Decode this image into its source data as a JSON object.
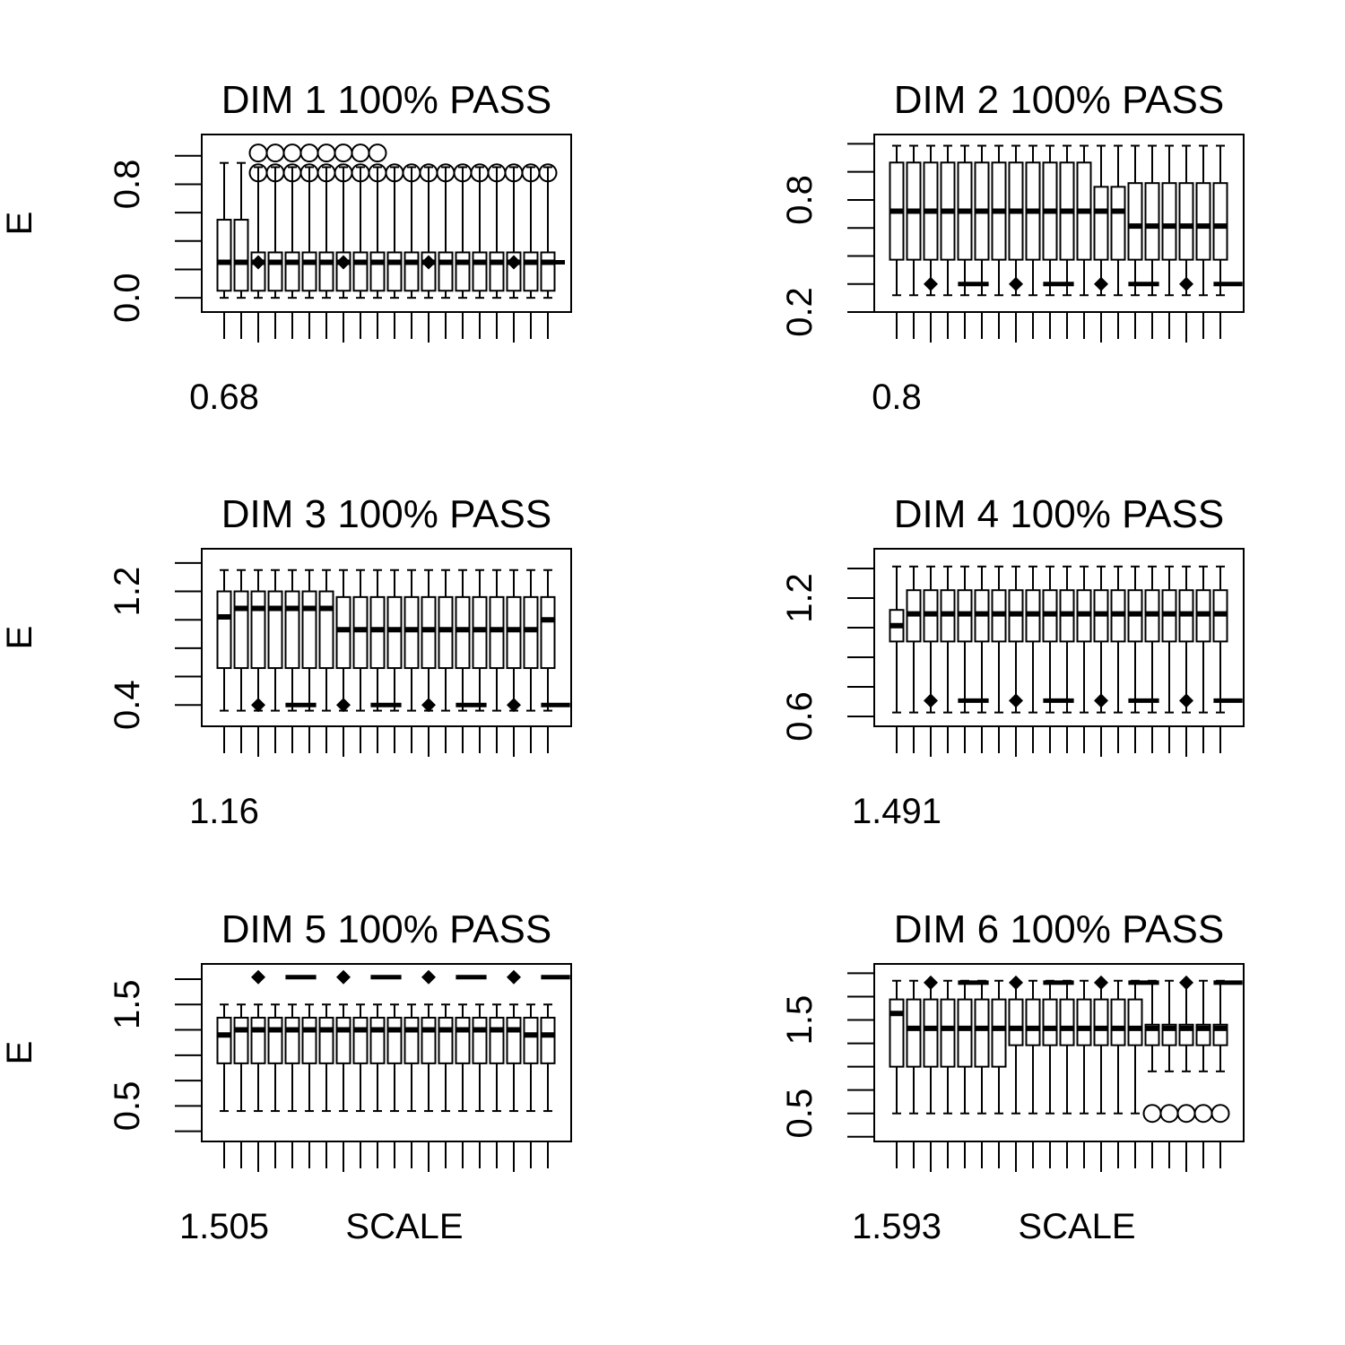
{
  "chart_data": [
    {
      "type": "box",
      "title": "DIM 1 100% PASS",
      "ylabel": "E",
      "xlabel": "",
      "x_tick_label": "0.68",
      "y_ticks": [
        "0.0",
        "0.8"
      ],
      "ylim": [
        -0.1,
        1.15
      ],
      "whisker_top": [
        0.95,
        0.95,
        0.92,
        0.92,
        0.92,
        0.92,
        0.92,
        0.92,
        0.92,
        0.92,
        0.92,
        0.92,
        0.92,
        0.92,
        0.92,
        0.92,
        0.92,
        0.92,
        0.92,
        0.92
      ],
      "q3": [
        0.55,
        0.55,
        0.32,
        0.32,
        0.32,
        0.32,
        0.32,
        0.32,
        0.32,
        0.32,
        0.32,
        0.32,
        0.32,
        0.32,
        0.32,
        0.32,
        0.32,
        0.32,
        0.32,
        0.32
      ],
      "median": [
        0.25,
        0.25,
        0.25,
        0.25,
        0.25,
        0.25,
        0.25,
        0.25,
        0.25,
        0.25,
        0.25,
        0.25,
        0.25,
        0.25,
        0.25,
        0.25,
        0.25,
        0.25,
        0.25,
        0.25
      ],
      "q1": [
        0.05,
        0.05,
        0.05,
        0.05,
        0.05,
        0.05,
        0.05,
        0.05,
        0.05,
        0.05,
        0.05,
        0.05,
        0.05,
        0.05,
        0.05,
        0.05,
        0.05,
        0.05,
        0.05,
        0.05
      ],
      "whisker_bottom": [
        0.0,
        0.0,
        0.0,
        0.0,
        0.0,
        0.0,
        0.0,
        0.0,
        0.0,
        0.0,
        0.0,
        0.0,
        0.0,
        0.0,
        0.0,
        0.0,
        0.0,
        0.0,
        0.0,
        0.0
      ],
      "outliers": [
        [],
        [],
        [
          0.88,
          1.02
        ],
        [
          0.88,
          1.02
        ],
        [
          0.88,
          1.02
        ],
        [
          0.88,
          1.02
        ],
        [
          0.88,
          1.02
        ],
        [
          0.88,
          1.02
        ],
        [
          0.88,
          1.02
        ],
        [
          0.88,
          1.02
        ],
        [
          0.88
        ],
        [
          0.88
        ],
        [
          0.88
        ],
        [
          0.88
        ],
        [
          0.88
        ],
        [
          0.88
        ],
        [
          0.88
        ],
        [
          0.88
        ],
        [
          0.88
        ],
        [
          0.88
        ]
      ],
      "extra_marks": [
        {
          "type": "diamond",
          "x": 3,
          "y": 0.25
        },
        {
          "type": "diamond",
          "x": 8,
          "y": 0.25
        },
        {
          "type": "diamond",
          "x": 13,
          "y": 0.25
        },
        {
          "type": "diamond",
          "x": 18,
          "y": 0.25
        },
        {
          "type": "dash",
          "x1": 20,
          "x2": 21,
          "y": 0.25
        }
      ]
    },
    {
      "type": "box",
      "title": "DIM 2 100% PASS",
      "ylabel": "",
      "xlabel": "",
      "x_tick_label": "0.8",
      "y_ticks": [
        "0.2",
        "0.8"
      ],
      "ylim": [
        0.2,
        1.15
      ],
      "whisker_top": [
        1.09,
        1.09,
        1.09,
        1.09,
        1.09,
        1.09,
        1.09,
        1.09,
        1.09,
        1.09,
        1.09,
        1.09,
        1.09,
        1.09,
        1.09,
        1.09,
        1.09,
        1.09,
        1.09,
        1.09
      ],
      "q3": [
        1.0,
        1.0,
        1.0,
        1.0,
        1.0,
        1.0,
        1.0,
        1.0,
        1.0,
        1.0,
        1.0,
        1.0,
        0.87,
        0.87,
        0.89,
        0.89,
        0.89,
        0.89,
        0.89,
        0.89
      ],
      "median": [
        0.74,
        0.74,
        0.74,
        0.74,
        0.74,
        0.74,
        0.74,
        0.74,
        0.74,
        0.74,
        0.74,
        0.74,
        0.74,
        0.74,
        0.66,
        0.66,
        0.66,
        0.66,
        0.66,
        0.66
      ],
      "q1": [
        0.48,
        0.48,
        0.48,
        0.48,
        0.48,
        0.48,
        0.48,
        0.48,
        0.48,
        0.48,
        0.48,
        0.48,
        0.48,
        0.48,
        0.48,
        0.48,
        0.48,
        0.48,
        0.48,
        0.48
      ],
      "whisker_bottom": [
        0.29,
        0.29,
        0.29,
        0.29,
        0.29,
        0.29,
        0.29,
        0.29,
        0.29,
        0.29,
        0.29,
        0.29,
        0.29,
        0.29,
        0.29,
        0.29,
        0.29,
        0.29,
        0.29,
        0.29
      ],
      "outliers": [],
      "extra_marks": [
        {
          "type": "diamond",
          "x": 3,
          "y": 0.35
        },
        {
          "type": "dash",
          "x1": 4.6,
          "x2": 6.4,
          "y": 0.35
        },
        {
          "type": "diamond",
          "x": 8,
          "y": 0.35
        },
        {
          "type": "dash",
          "x1": 9.6,
          "x2": 11.4,
          "y": 0.35
        },
        {
          "type": "diamond",
          "x": 13,
          "y": 0.35
        },
        {
          "type": "dash",
          "x1": 14.6,
          "x2": 16.4,
          "y": 0.35
        },
        {
          "type": "diamond",
          "x": 18,
          "y": 0.35
        },
        {
          "type": "dash",
          "x1": 19.6,
          "x2": 21.3,
          "y": 0.35
        }
      ]
    },
    {
      "type": "box",
      "title": "DIM 3 100% PASS",
      "ylabel": "E",
      "xlabel": "",
      "x_tick_label": "1.16",
      "y_ticks": [
        "0.4",
        "1.2"
      ],
      "ylim": [
        0.25,
        1.5
      ],
      "whisker_top": [
        1.35,
        1.35,
        1.35,
        1.35,
        1.35,
        1.35,
        1.35,
        1.35,
        1.35,
        1.35,
        1.35,
        1.35,
        1.35,
        1.35,
        1.35,
        1.35,
        1.35,
        1.35,
        1.35,
        1.35
      ],
      "q3": [
        1.2,
        1.2,
        1.2,
        1.2,
        1.2,
        1.2,
        1.2,
        1.16,
        1.16,
        1.16,
        1.16,
        1.16,
        1.16,
        1.16,
        1.16,
        1.16,
        1.16,
        1.16,
        1.16,
        1.16
      ],
      "median": [
        1.02,
        1.08,
        1.08,
        1.08,
        1.08,
        1.08,
        1.08,
        0.93,
        0.93,
        0.93,
        0.93,
        0.93,
        0.93,
        0.93,
        0.93,
        0.93,
        0.93,
        0.93,
        0.93,
        1.0
      ],
      "q1": [
        0.66,
        0.66,
        0.66,
        0.66,
        0.66,
        0.66,
        0.66,
        0.66,
        0.66,
        0.66,
        0.66,
        0.66,
        0.66,
        0.66,
        0.66,
        0.66,
        0.66,
        0.66,
        0.66,
        0.66
      ],
      "whisker_bottom": [
        0.36,
        0.36,
        0.36,
        0.36,
        0.36,
        0.36,
        0.36,
        0.36,
        0.36,
        0.36,
        0.36,
        0.36,
        0.36,
        0.36,
        0.36,
        0.36,
        0.36,
        0.36,
        0.36,
        0.36
      ],
      "outliers": [],
      "extra_marks": [
        {
          "type": "diamond",
          "x": 3,
          "y": 0.4
        },
        {
          "type": "dash",
          "x1": 4.6,
          "x2": 6.4,
          "y": 0.4
        },
        {
          "type": "diamond",
          "x": 8,
          "y": 0.4
        },
        {
          "type": "dash",
          "x1": 9.6,
          "x2": 11.4,
          "y": 0.4
        },
        {
          "type": "diamond",
          "x": 13,
          "y": 0.4
        },
        {
          "type": "dash",
          "x1": 14.6,
          "x2": 16.4,
          "y": 0.4
        },
        {
          "type": "diamond",
          "x": 18,
          "y": 0.4
        },
        {
          "type": "dash",
          "x1": 19.6,
          "x2": 21.3,
          "y": 0.4
        }
      ]
    },
    {
      "type": "box",
      "title": "DIM 4 100% PASS",
      "ylabel": "",
      "xlabel": "",
      "x_tick_label": "1.491",
      "y_ticks": [
        "0.6",
        "1.2"
      ],
      "ylim": [
        0.55,
        1.45
      ],
      "whisker_top": [
        1.36,
        1.36,
        1.36,
        1.36,
        1.36,
        1.36,
        1.36,
        1.36,
        1.36,
        1.36,
        1.36,
        1.36,
        1.36,
        1.36,
        1.36,
        1.36,
        1.36,
        1.36,
        1.36,
        1.36
      ],
      "q3": [
        1.14,
        1.24,
        1.24,
        1.24,
        1.24,
        1.24,
        1.24,
        1.24,
        1.24,
        1.24,
        1.24,
        1.24,
        1.24,
        1.24,
        1.24,
        1.24,
        1.24,
        1.24,
        1.24,
        1.24
      ],
      "median": [
        1.06,
        1.12,
        1.12,
        1.12,
        1.12,
        1.12,
        1.12,
        1.12,
        1.12,
        1.12,
        1.12,
        1.12,
        1.12,
        1.12,
        1.12,
        1.12,
        1.12,
        1.12,
        1.12,
        1.12
      ],
      "q1": [
        0.98,
        0.98,
        0.98,
        0.98,
        0.98,
        0.98,
        0.98,
        0.98,
        0.98,
        0.98,
        0.98,
        0.98,
        0.98,
        0.98,
        0.98,
        0.98,
        0.98,
        0.98,
        0.98,
        0.98
      ],
      "whisker_bottom": [
        0.62,
        0.62,
        0.62,
        0.62,
        0.62,
        0.62,
        0.62,
        0.62,
        0.62,
        0.62,
        0.62,
        0.62,
        0.62,
        0.62,
        0.62,
        0.62,
        0.62,
        0.62,
        0.62,
        0.62
      ],
      "outliers": [],
      "extra_marks": [
        {
          "type": "diamond",
          "x": 3,
          "y": 0.68
        },
        {
          "type": "dash",
          "x1": 4.6,
          "x2": 6.4,
          "y": 0.68
        },
        {
          "type": "diamond",
          "x": 8,
          "y": 0.68
        },
        {
          "type": "dash",
          "x1": 9.6,
          "x2": 11.4,
          "y": 0.68
        },
        {
          "type": "diamond",
          "x": 13,
          "y": 0.68
        },
        {
          "type": "dash",
          "x1": 14.6,
          "x2": 16.4,
          "y": 0.68
        },
        {
          "type": "diamond",
          "x": 18,
          "y": 0.68
        },
        {
          "type": "dash",
          "x1": 19.6,
          "x2": 21.3,
          "y": 0.68
        }
      ]
    },
    {
      "type": "box",
      "title": "DIM 5 100% PASS",
      "ylabel": "E",
      "xlabel": "SCALE",
      "x_tick_label": "1.505",
      "y_ticks": [
        "0.5",
        "1.5"
      ],
      "ylim": [
        0.15,
        1.9
      ],
      "whisker_top": [
        1.5,
        1.5,
        1.5,
        1.5,
        1.5,
        1.5,
        1.5,
        1.5,
        1.5,
        1.5,
        1.5,
        1.5,
        1.5,
        1.5,
        1.5,
        1.5,
        1.5,
        1.5,
        1.5,
        1.5
      ],
      "q3": [
        1.37,
        1.37,
        1.37,
        1.37,
        1.37,
        1.37,
        1.37,
        1.37,
        1.37,
        1.37,
        1.37,
        1.37,
        1.37,
        1.37,
        1.37,
        1.37,
        1.37,
        1.37,
        1.37,
        1.37
      ],
      "median": [
        1.2,
        1.25,
        1.25,
        1.25,
        1.25,
        1.25,
        1.25,
        1.25,
        1.25,
        1.25,
        1.25,
        1.25,
        1.25,
        1.25,
        1.25,
        1.25,
        1.25,
        1.25,
        1.2,
        1.2
      ],
      "q1": [
        0.92,
        0.92,
        0.92,
        0.92,
        0.92,
        0.92,
        0.92,
        0.92,
        0.92,
        0.92,
        0.92,
        0.92,
        0.92,
        0.92,
        0.92,
        0.92,
        0.92,
        0.92,
        0.92,
        0.92
      ],
      "whisker_bottom": [
        0.45,
        0.45,
        0.45,
        0.45,
        0.45,
        0.45,
        0.45,
        0.45,
        0.45,
        0.45,
        0.45,
        0.45,
        0.45,
        0.45,
        0.45,
        0.45,
        0.45,
        0.45,
        0.45,
        0.45
      ],
      "outliers": [],
      "extra_marks": [
        {
          "type": "diamond",
          "x": 3,
          "y": 1.77
        },
        {
          "type": "dash",
          "x1": 4.6,
          "x2": 6.4,
          "y": 1.77
        },
        {
          "type": "diamond",
          "x": 8,
          "y": 1.77
        },
        {
          "type": "dash",
          "x1": 9.6,
          "x2": 11.4,
          "y": 1.77
        },
        {
          "type": "diamond",
          "x": 13,
          "y": 1.77
        },
        {
          "type": "dash",
          "x1": 14.6,
          "x2": 16.4,
          "y": 1.77
        },
        {
          "type": "diamond",
          "x": 18,
          "y": 1.77
        },
        {
          "type": "dash",
          "x1": 19.6,
          "x2": 21.3,
          "y": 1.77
        }
      ]
    },
    {
      "type": "box",
      "title": "DIM 6 100% PASS",
      "ylabel": "",
      "xlabel": "SCALE",
      "x_tick_label": "1.593",
      "y_ticks": [
        "0.5",
        "1.5"
      ],
      "ylim": [
        0.2,
        2.1
      ],
      "whisker_top": [
        1.92,
        1.92,
        1.92,
        1.92,
        1.92,
        1.92,
        1.92,
        1.92,
        1.92,
        1.92,
        1.92,
        1.92,
        1.92,
        1.92,
        1.92,
        1.92,
        1.92,
        1.92,
        1.92,
        1.92
      ],
      "q3": [
        1.72,
        1.72,
        1.72,
        1.72,
        1.72,
        1.72,
        1.72,
        1.72,
        1.72,
        1.72,
        1.72,
        1.72,
        1.72,
        1.72,
        1.72,
        1.45,
        1.45,
        1.45,
        1.45,
        1.45
      ],
      "median": [
        1.57,
        1.41,
        1.41,
        1.41,
        1.41,
        1.41,
        1.41,
        1.41,
        1.41,
        1.41,
        1.41,
        1.41,
        1.41,
        1.41,
        1.41,
        1.41,
        1.41,
        1.41,
        1.41,
        1.41
      ],
      "q1": [
        1.0,
        1.0,
        1.0,
        1.0,
        1.0,
        1.0,
        1.0,
        1.23,
        1.23,
        1.23,
        1.23,
        1.23,
        1.23,
        1.23,
        1.23,
        1.23,
        1.23,
        1.23,
        1.23,
        1.23
      ],
      "whisker_bottom": [
        0.5,
        0.5,
        0.5,
        0.5,
        0.5,
        0.5,
        0.5,
        0.5,
        0.5,
        0.5,
        0.5,
        0.5,
        0.5,
        0.5,
        0.5,
        0.95,
        0.95,
        0.95,
        0.95,
        0.95
      ],
      "outliers": [
        [],
        [],
        [],
        [],
        [],
        [],
        [],
        [],
        [],
        [],
        [],
        [],
        [],
        [],
        [],
        [
          0.5
        ],
        [
          0.5
        ],
        [
          0.5
        ],
        [
          0.5
        ],
        [
          0.5
        ]
      ],
      "extra_marks": [
        {
          "type": "diamond",
          "x": 3,
          "y": 1.9
        },
        {
          "type": "dash",
          "x1": 4.6,
          "x2": 6.4,
          "y": 1.9
        },
        {
          "type": "diamond",
          "x": 8,
          "y": 1.9
        },
        {
          "type": "dash",
          "x1": 9.6,
          "x2": 11.4,
          "y": 1.9
        },
        {
          "type": "diamond",
          "x": 13,
          "y": 1.9
        },
        {
          "type": "dash",
          "x1": 14.6,
          "x2": 16.4,
          "y": 1.9
        },
        {
          "type": "diamond",
          "x": 18,
          "y": 1.9
        },
        {
          "type": "dash",
          "x1": 19.6,
          "x2": 21.3,
          "y": 1.9
        }
      ]
    }
  ]
}
